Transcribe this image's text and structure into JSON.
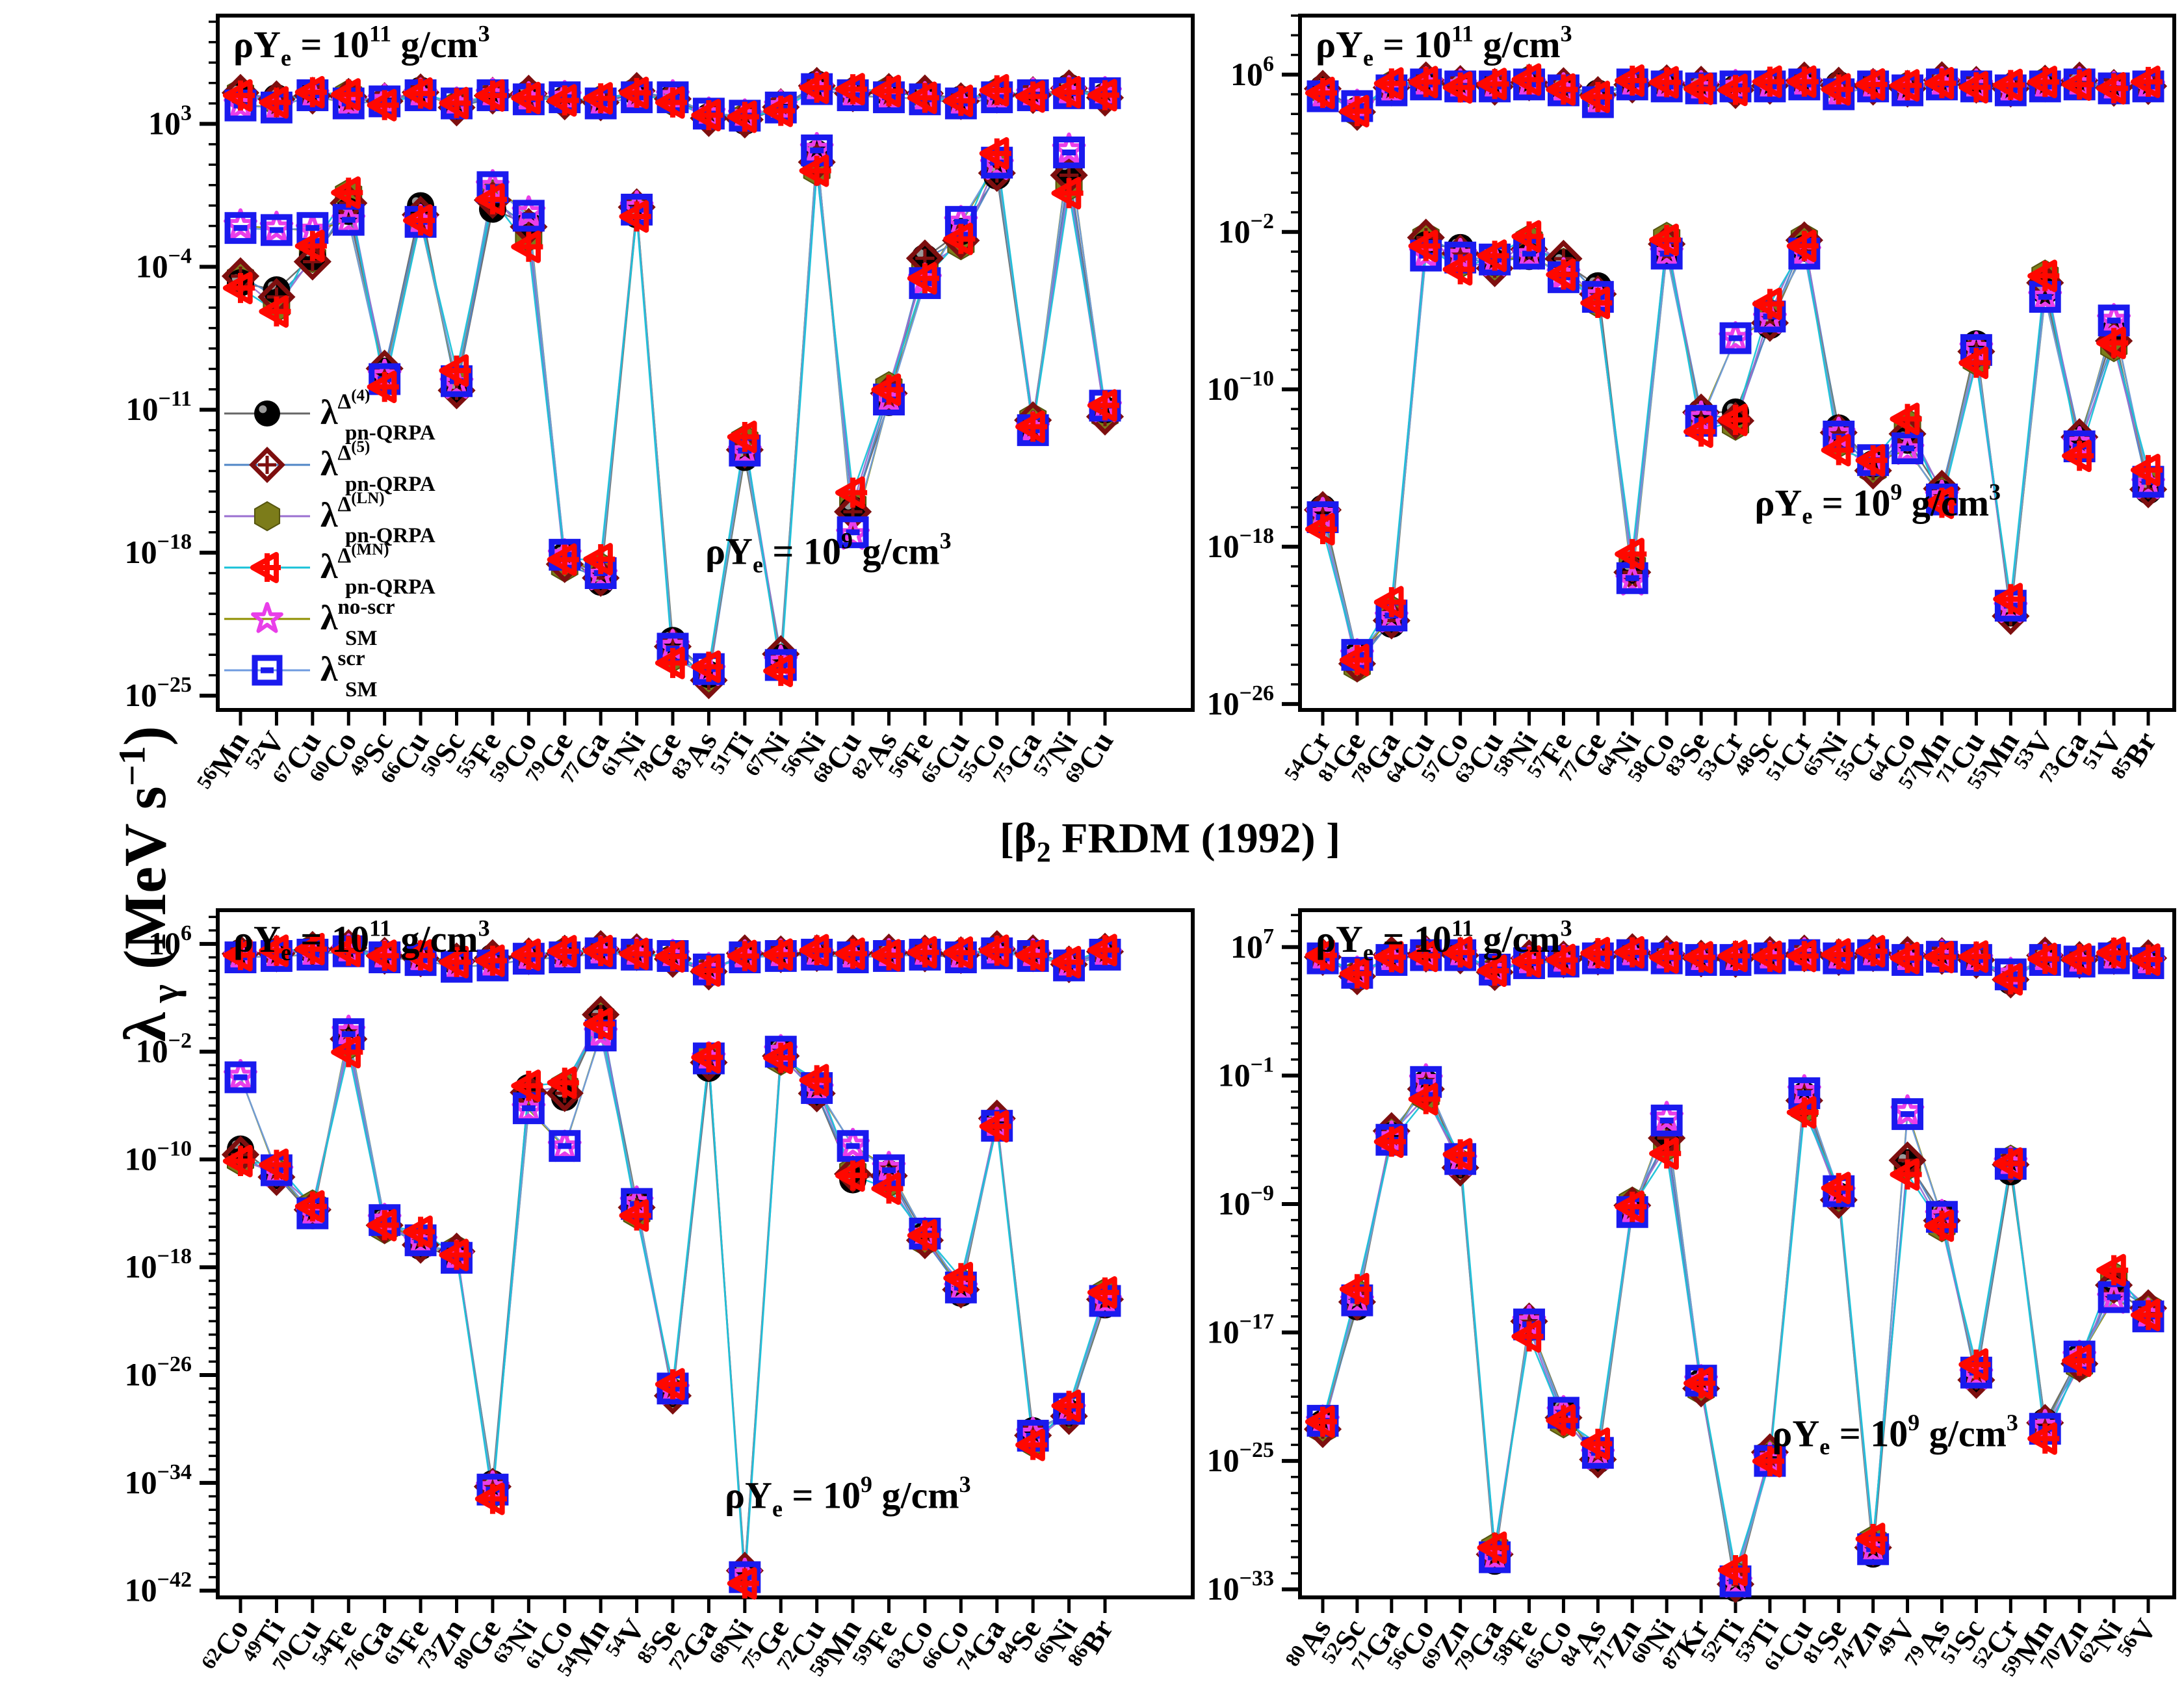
{
  "figure": {
    "ylabel": {
      "lambda": "λ",
      "sub": " γ",
      "rest": " (MeV s",
      "sup": "−1",
      "close": ")"
    },
    "center_title": {
      "open": "[β",
      "sub": "2",
      "rest": " FRDM (1992) ]"
    },
    "annotation_parts": {
      "prefix": "ρY",
      "sub": "e",
      "eq": " = 10",
      "suffix": " g/cm",
      "cube": "3"
    },
    "density_high_exp": "11",
    "density_low_exp": "9"
  },
  "legend": {
    "items": [
      {
        "sup_base": "Δ",
        "sup_exp": "(4)",
        "sub": "pn-QRPA",
        "lambda": "λ",
        "marker": "sphere-black",
        "marker_color": "#000000",
        "line_color": "#666666"
      },
      {
        "sup_base": "Δ",
        "sup_exp": "(5)",
        "sub": "pn-QRPA",
        "lambda": "λ",
        "marker": "diamond-cross-maroon",
        "marker_color": "#7e0f0f",
        "line_color": "#4f86c6"
      },
      {
        "sup_base": "Δ",
        "sup_exp": "(LN)",
        "sub": "pn-QRPA",
        "lambda": "λ",
        "marker": "hexagon-olive",
        "marker_color": "#7c7c1a",
        "line_color": "#9a6fd0"
      },
      {
        "sup_base": "Δ",
        "sup_exp": "(MN)",
        "sub": "pn-QRPA",
        "lambda": "λ",
        "marker": "caret-left-red",
        "marker_color": "#ff0800",
        "line_color": "#19c2d8"
      },
      {
        "sup_base": "no-scr",
        "sup_exp": "",
        "sub": "SM",
        "lambda": "λ",
        "marker": "star-magenta",
        "marker_color": "#e93ee9",
        "line_color": "#8f8f00"
      },
      {
        "sup_base": "scr",
        "sup_exp": "",
        "sub": "SM",
        "lambda": "λ",
        "marker": "square-bar-blue",
        "marker_color": "#1a1aee",
        "line_color": "#6f9bdf"
      }
    ]
  },
  "chart_data": [
    {
      "id": "top-left",
      "type": "line",
      "ylabel": "lambda_gamma (MeV/s)",
      "grid": false,
      "legend_position": "lower-left-inside",
      "y_major_exponents": [
        3,
        -4,
        -11,
        -18,
        -25
      ],
      "ylog_top": 8.3,
      "ylog_bottom": -25.7,
      "annotation_high": "rhoYe = 1e11 g/cm3",
      "annotation_low": "rhoYe = 1e9 g/cm3",
      "low_annotation_pos": [
        0.5,
        0.79
      ],
      "categories": [
        "56Mn",
        "52V",
        "67Cu",
        "60Co",
        "49Sc",
        "66Cu",
        "50Sc",
        "55Fe",
        "59Co",
        "79Ge",
        "77Ga",
        "61Ni",
        "78Ge",
        "83As",
        "51Ti",
        "67Ni",
        "56Ni",
        "68Cu",
        "82As",
        "56Fe",
        "65Cu",
        "55Co",
        "75Ga",
        "57Ni",
        "69Cu"
      ],
      "series_log10": {
        "rho11_qrpa": [
          4.4,
          4.2,
          4.5,
          4.3,
          4.0,
          4.6,
          3.9,
          4.3,
          4.4,
          4.2,
          4.1,
          4.5,
          4.2,
          3.4,
          3.2,
          3.7,
          4.9,
          4.6,
          4.5,
          4.4,
          4.2,
          4.5,
          4.3,
          4.7,
          4.4
        ],
        "rho11_sm": [
          3.9,
          3.8,
          4.4,
          4.0,
          4.1,
          4.4,
          4.0,
          4.4,
          4.2,
          4.3,
          4.0,
          4.3,
          4.3,
          3.5,
          3.4,
          3.8,
          4.7,
          4.4,
          4.3,
          4.2,
          4.0,
          4.3,
          4.4,
          4.5,
          4.5
        ],
        "rho9_qrpa": [
          -5.0,
          -5.5,
          -3.2,
          -1.0,
          -9.5,
          -1.2,
          -9.6,
          -1.1,
          -2.4,
          -18.1,
          -19.0,
          -1.6,
          -22.7,
          -23.7,
          -13.0,
          -23.5,
          1.3,
          -15.5,
          -10.5,
          -4.0,
          -2.3,
          0.9,
          -12.0,
          0.3,
          -10.8
        ],
        "rho9_sm": [
          -2.1,
          -2.2,
          -2.1,
          -1.7,
          -9.5,
          -1.8,
          -9.6,
          -0.1,
          -1.5,
          -18.1,
          -19.0,
          -1.2,
          -22.7,
          -23.7,
          -13.0,
          -23.5,
          1.7,
          -17.0,
          -10.5,
          -4.8,
          -1.8,
          1.1,
          -12.0,
          1.6,
          -10.8
        ]
      }
    },
    {
      "id": "top-right",
      "type": "line",
      "grid": false,
      "y_major_exponents": [
        6,
        -2,
        -10,
        -18,
        -26
      ],
      "ylog_top": 9.0,
      "ylog_bottom": -26.3,
      "annotation_high": "rhoYe = 1e11 g/cm3",
      "annotation_low": "rhoYe = 1e9 g/cm3",
      "low_annotation_pos": [
        0.52,
        0.72
      ],
      "categories": [
        "54Cr",
        "81Ge",
        "78Ga",
        "64Cu",
        "57Co",
        "63Cu",
        "58Ni",
        "57Fe",
        "77Ge",
        "64Ni",
        "58Co",
        "83Se",
        "53Cr",
        "48Sc",
        "51Cr",
        "65Ni",
        "55Cr",
        "64Co",
        "57Mn",
        "71Cu",
        "55Mn",
        "53V",
        "73Ga",
        "51V",
        "85Br"
      ],
      "series_log10": {
        "rho11_qrpa": [
          5.2,
          4.2,
          5.4,
          5.6,
          5.5,
          5.5,
          5.6,
          5.3,
          5.0,
          5.6,
          5.5,
          5.4,
          5.3,
          5.5,
          5.6,
          5.4,
          5.5,
          5.3,
          5.6,
          5.5,
          5.4,
          5.5,
          5.6,
          5.4,
          5.5
        ],
        "rho11_sm": [
          4.9,
          4.4,
          5.2,
          5.5,
          5.4,
          5.4,
          5.5,
          5.2,
          4.6,
          5.5,
          5.4,
          5.3,
          5.4,
          5.4,
          5.5,
          5.0,
          5.4,
          5.2,
          5.5,
          5.4,
          5.2,
          5.4,
          5.5,
          5.3,
          5.4
        ],
        "rho9_qrpa": [
          -16.5,
          -23.5,
          -21.5,
          -2.8,
          -3.2,
          -3.3,
          -2.9,
          -3.9,
          -5.0,
          -18.8,
          -2.9,
          -11.6,
          -11.2,
          -6.3,
          -2.9,
          -12.4,
          -13.6,
          -12.2,
          -15.6,
          -8.0,
          -21.0,
          -4.8,
          -12.9,
          -7.2,
          -14.7
        ],
        "rho9_sm": [
          -16.5,
          -23.5,
          -21.5,
          -3.2,
          -3.3,
          -3.4,
          -3.1,
          -4.3,
          -5.3,
          -19.6,
          -3.1,
          -11.6,
          -7.4,
          -6.3,
          -3.1,
          -12.4,
          -13.6,
          -13.0,
          -15.6,
          -8.0,
          -21.0,
          -5.3,
          -12.9,
          -6.5,
          -14.7
        ]
      }
    },
    {
      "id": "bottom-left",
      "type": "line",
      "grid": false,
      "y_major_exponents": [
        6,
        -2,
        -10,
        -18,
        -26,
        -34,
        -42
      ],
      "ylog_top": 8.5,
      "ylog_bottom": -42.5,
      "annotation_high": "rhoYe = 1e11 g/cm3",
      "annotation_low": "rhoYe = 1e9 g/cm3",
      "low_annotation_pos": [
        0.52,
        0.87
      ],
      "categories": [
        "62Co",
        "49Ti",
        "70Cu",
        "54Fe",
        "76Ga",
        "61Fe",
        "73Zn",
        "80Ge",
        "63Ni",
        "61Co",
        "54Mn",
        "54V",
        "85Se",
        "72Ga",
        "68Ni",
        "75Ge",
        "72Cu",
        "58Mn",
        "59Fe",
        "63Co",
        "66Co",
        "74Ga",
        "84Se",
        "66Ni",
        "86Br"
      ],
      "series_log10": {
        "rho11_qrpa": [
          5.3,
          5.4,
          5.5,
          5.6,
          5.2,
          5.0,
          4.6,
          4.9,
          5.2,
          5.3,
          5.5,
          5.4,
          5.0,
          3.9,
          5.2,
          5.3,
          5.4,
          5.2,
          5.3,
          5.4,
          5.2,
          5.5,
          5.3,
          4.6,
          5.4
        ],
        "rho11_sm": [
          5.0,
          5.1,
          5.2,
          5.45,
          5.0,
          4.8,
          4.3,
          4.4,
          4.9,
          5.0,
          5.3,
          5.2,
          5.1,
          4.1,
          5.0,
          5.1,
          5.2,
          5.0,
          5.1,
          5.2,
          5.0,
          5.3,
          5.1,
          4.4,
          5.2
        ],
        "rho9_qrpa": [
          -9.5,
          -10.8,
          -14.0,
          -1.5,
          -14.5,
          -16.0,
          -17.3,
          -34.5,
          -4.5,
          -5.0,
          0.2,
          -13.5,
          -27.0,
          -3.0,
          -41.0,
          -2.0,
          -4.7,
          -11.5,
          -11.5,
          -15.5,
          -19.5,
          -7.5,
          -30.5,
          -28.5,
          -20.5
        ],
        "rho9_sm": [
          -3.9,
          -10.8,
          -14.0,
          -0.7,
          -14.5,
          -16.0,
          -17.3,
          -34.5,
          -6.2,
          -9.0,
          -0.8,
          -13.3,
          -27.0,
          -2.5,
          -41.0,
          -2.0,
          -4.7,
          -9.0,
          -10.8,
          -15.5,
          -19.5,
          -7.5,
          -30.5,
          -28.5,
          -20.5
        ]
      }
    },
    {
      "id": "bottom-right",
      "type": "line",
      "grid": false,
      "y_major_exponents": [
        7,
        -1,
        -9,
        -17,
        -25,
        -33
      ],
      "ylog_top": 9.3,
      "ylog_bottom": -33.5,
      "annotation_high": "rhoYe = 1e11 g/cm3",
      "annotation_low": "rhoYe = 1e9 g/cm3",
      "low_annotation_pos": [
        0.54,
        0.78
      ],
      "categories": [
        "80As",
        "52Sc",
        "71Ga",
        "56Co",
        "69Zn",
        "79Ga",
        "58Fe",
        "65Co",
        "84As",
        "71Zn",
        "60Ni",
        "87Kr",
        "52Ti",
        "53Ti",
        "61Cu",
        "81Se",
        "74Zn",
        "49V",
        "79As",
        "51Sc",
        "52Cr",
        "59Mn",
        "70Zn",
        "62Ni",
        "56V"
      ],
      "series_log10": {
        "rho11_qrpa": [
          6.5,
          5.2,
          6.4,
          6.6,
          6.6,
          5.4,
          6.2,
          6.3,
          6.5,
          6.6,
          6.5,
          6.4,
          6.3,
          6.4,
          6.6,
          6.5,
          6.6,
          6.4,
          6.5,
          6.3,
          4.9,
          6.4,
          6.3,
          6.5,
          6.2
        ],
        "rho11_sm": [
          6.3,
          5.4,
          6.2,
          6.5,
          6.5,
          5.6,
          6.0,
          6.1,
          6.3,
          6.5,
          6.3,
          6.2,
          6.2,
          6.3,
          6.5,
          6.3,
          6.5,
          6.2,
          6.4,
          6.2,
          5.3,
          6.2,
          6.1,
          6.3,
          6.0
        ],
        "rho9_qrpa": [
          -22.5,
          -15.0,
          -5.0,
          -1.8,
          -6.2,
          -31.0,
          -16.8,
          -22.0,
          -24.5,
          -9.5,
          -5.2,
          -20.0,
          -32.5,
          -25.0,
          -2.6,
          -8.2,
          -30.5,
          -6.8,
          -9.8,
          -19.5,
          -6.9,
          -23.0,
          -18.5,
          -13.8,
          -16.0
        ],
        "rho9_sm": [
          -22.5,
          -15.0,
          -5.0,
          -1.4,
          -6.2,
          -31.0,
          -16.5,
          -22.0,
          -24.5,
          -9.5,
          -3.8,
          -20.0,
          -32.5,
          -25.0,
          -2.1,
          -8.2,
          -30.5,
          -3.4,
          -9.8,
          -19.5,
          -6.5,
          -23.0,
          -18.5,
          -14.8,
          -16.0
        ]
      }
    }
  ]
}
